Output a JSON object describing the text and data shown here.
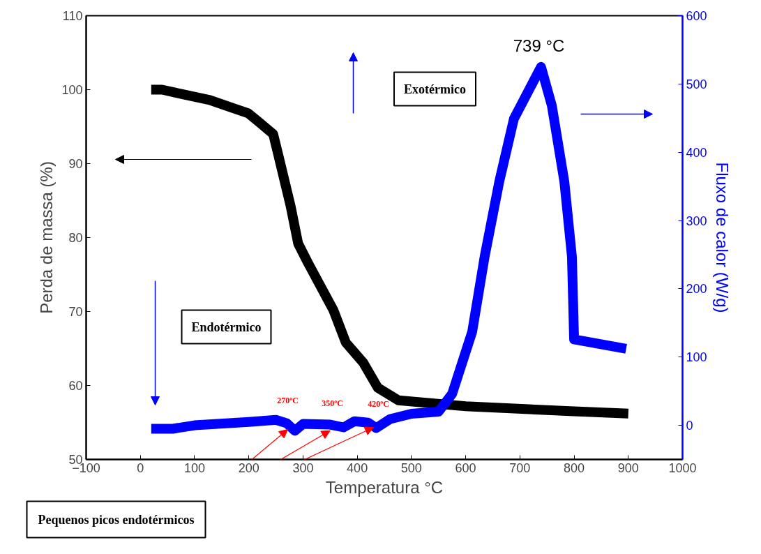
{
  "chart_data": {
    "type": "line",
    "xlabel": "Temperatura °C",
    "ylabel": "Perda de massa (%)",
    "y2label": "Fluxo de calor (W/g)",
    "xlim": [
      -100,
      1000
    ],
    "xticks": [
      -100,
      0,
      100,
      200,
      300,
      400,
      500,
      600,
      700,
      800,
      900,
      1000
    ],
    "ylim": [
      50,
      110
    ],
    "yticks": [
      50,
      60,
      70,
      80,
      90,
      100,
      110
    ],
    "y2lim": [
      -50,
      600
    ],
    "y2ticks": [
      0,
      100,
      200,
      300,
      400,
      500,
      600
    ],
    "grid": false,
    "line_style": "solid",
    "marker": "none",
    "series": [
      {
        "color": "#000000",
        "x": [
          20,
          40,
          77,
          128,
          167,
          199,
          219,
          245,
          255,
          277,
          291,
          309,
          356,
          379,
          411,
          438,
          476,
          600,
          800,
          900
        ],
        "values": [
          100,
          100,
          99.4,
          98.6,
          97.6,
          96.8,
          95.6,
          94,
          91,
          84.3,
          79.2,
          76.6,
          70.2,
          65.8,
          63.1,
          59.7,
          58,
          57.2,
          56.5,
          56.2
        ]
      },
      {
        "color": "#0000ff",
        "axis": "y2",
        "x": [
          20,
          60,
          100,
          200,
          250,
          270,
          285,
          300,
          350,
          375,
          395,
          420,
          435,
          460,
          500,
          550,
          575,
          612,
          635,
          662,
          689,
          739,
          759,
          782,
          796,
          800,
          896
        ],
        "values": [
          -5,
          -5,
          0,
          5,
          8,
          3,
          -8,
          2,
          1,
          -3,
          6,
          4,
          -4,
          9,
          17,
          20,
          46,
          137,
          247,
          357,
          449,
          525,
          468,
          357,
          247,
          126,
          112
        ]
      }
    ],
    "annotations": [
      "Exotérmico",
      "Endotérmico",
      "270ºC",
      "350ºC",
      "420ºC",
      "739 °C",
      {
        "text": "Pequenos picos endotérmicos",
        "x": 350,
        "y": 53.9
      }
    ]
  }
}
